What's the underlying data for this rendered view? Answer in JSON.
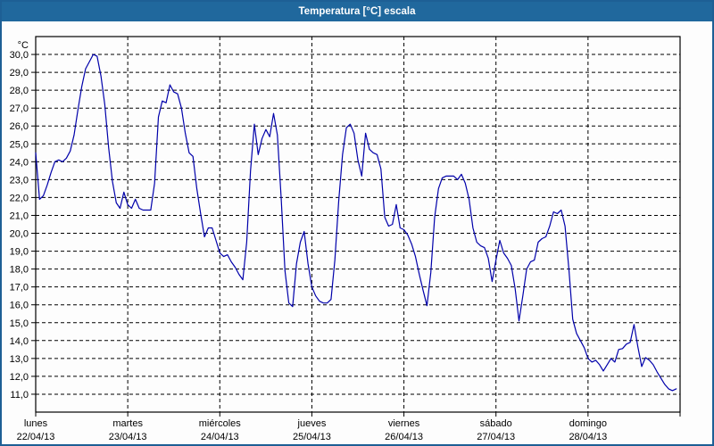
{
  "window": {
    "title": "Temperatura [°C] escala"
  },
  "colors": {
    "titlebar_bg": "#20689d",
    "window_border": "#1d5f95",
    "series_line": "#0000aa",
    "grid": "#000000",
    "frame": "#000000"
  },
  "chart_data": {
    "type": "line",
    "title": "Temperatura [°C] escala",
    "unit_label": "°C",
    "legend": "none",
    "grid": "dashed both axes",
    "y_axis": {
      "tick_min": 11.0,
      "tick_max": 30.0,
      "tick_step": 1.0,
      "plot_range": [
        10.0,
        31.0
      ],
      "tick_labels": [
        "30,0",
        "29,0",
        "28,0",
        "27,0",
        "26,0",
        "25,0",
        "24,0",
        "23,0",
        "22,0",
        "21,0",
        "20,0",
        "19,0",
        "18,0",
        "17,0",
        "16,0",
        "15,0",
        "14,0",
        "13,0",
        "12,0",
        "11,0"
      ]
    },
    "x_axis": {
      "days": [
        {
          "name": "lunes",
          "date": "22/04/13"
        },
        {
          "name": "martes",
          "date": "23/04/13"
        },
        {
          "name": "miércoles",
          "date": "24/04/13"
        },
        {
          "name": "jueves",
          "date": "25/04/13"
        },
        {
          "name": "viernes",
          "date": "26/04/13"
        },
        {
          "name": "sábado",
          "date": "27/04/13"
        },
        {
          "name": "domingo",
          "date": "28/04/13"
        }
      ],
      "points_per_day": 24
    },
    "series": [
      {
        "name": "Temperatura",
        "color": "#0000aa",
        "sampling": "hourly starting lunes 22/04/13 00:00",
        "values": [
          24.5,
          21.9,
          22.1,
          22.7,
          23.4,
          24.0,
          24.1,
          24.0,
          24.2,
          24.6,
          25.5,
          26.9,
          28.2,
          29.2,
          29.6,
          30.0,
          29.9,
          28.8,
          27.2,
          24.8,
          22.9,
          21.7,
          21.4,
          22.3,
          21.6,
          21.4,
          21.9,
          21.4,
          21.3,
          21.3,
          21.3,
          22.8,
          26.5,
          27.4,
          27.3,
          28.3,
          27.9,
          27.8,
          27.0,
          25.6,
          24.5,
          24.3,
          22.5,
          21.1,
          19.8,
          20.3,
          20.3,
          19.6,
          18.9,
          18.7,
          18.8,
          18.4,
          18.1,
          17.7,
          17.4,
          19.5,
          23.5,
          26.1,
          24.4,
          25.3,
          25.8,
          25.4,
          26.7,
          25.5,
          22.0,
          17.9,
          16.1,
          15.9,
          18.3,
          19.5,
          20.1,
          18.3,
          17.0,
          16.5,
          16.2,
          16.1,
          16.1,
          16.3,
          18.5,
          21.8,
          24.4,
          25.9,
          26.1,
          25.6,
          24.1,
          23.2,
          25.6,
          24.7,
          24.5,
          24.4,
          23.6,
          20.9,
          20.4,
          20.5,
          21.6,
          20.3,
          20.2,
          19.9,
          19.4,
          18.7,
          17.7,
          16.8,
          15.95,
          17.8,
          20.9,
          22.5,
          23.1,
          23.2,
          23.2,
          23.2,
          23.0,
          23.3,
          22.8,
          21.9,
          20.3,
          19.5,
          19.3,
          19.2,
          18.6,
          17.3,
          18.5,
          19.6,
          18.9,
          18.6,
          18.2,
          16.9,
          15.1,
          16.5,
          18.0,
          18.4,
          18.5,
          19.5,
          19.7,
          19.8,
          20.4,
          21.2,
          21.1,
          21.3,
          20.4,
          18.0,
          15.2,
          14.4,
          14.0,
          13.6,
          13.0,
          12.8,
          12.9,
          12.65,
          12.3,
          12.65,
          13.0,
          12.8,
          13.5,
          13.55,
          13.8,
          13.9,
          14.9,
          13.65,
          12.55,
          13.05,
          12.9,
          12.65,
          12.25,
          11.9,
          11.55,
          11.3,
          11.2,
          11.3
        ]
      }
    ]
  }
}
